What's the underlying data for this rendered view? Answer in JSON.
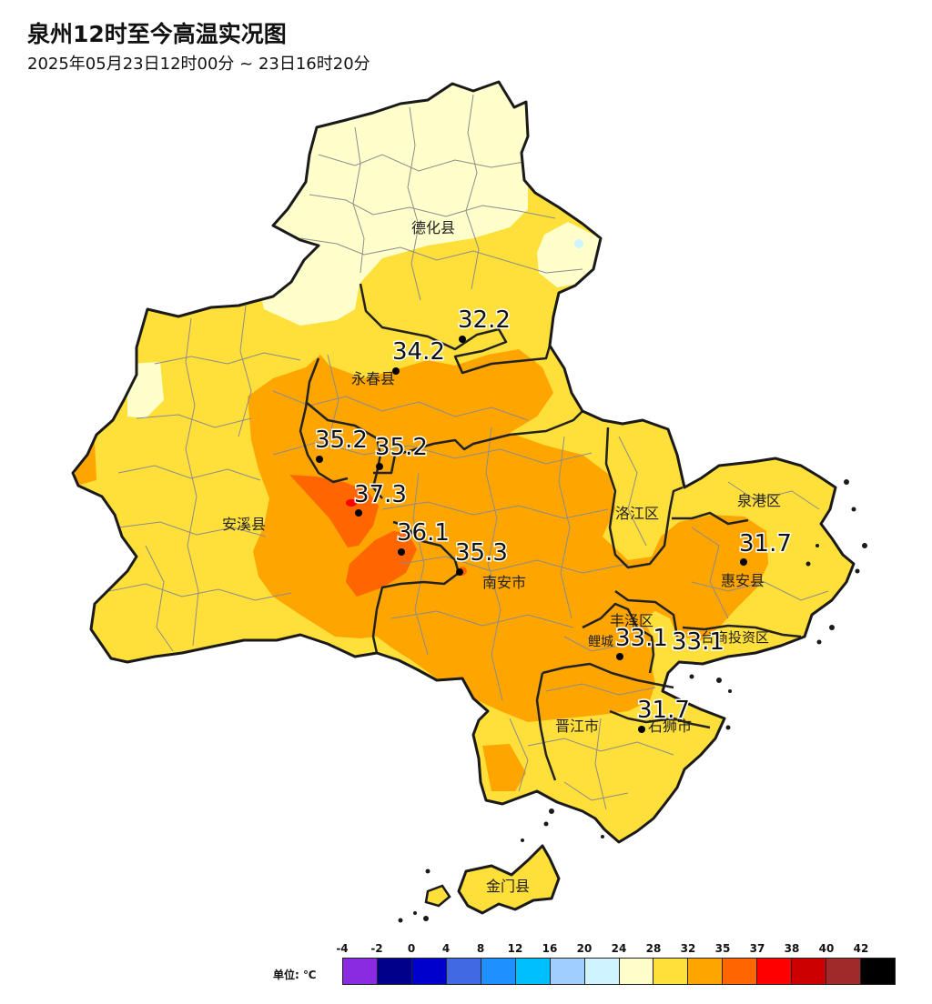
{
  "title": "泉州12时至今高温实况图",
  "subtitle": "2025年05月23日12时00分 ~ 23日16时20分",
  "counties": [
    {
      "name": "德化县"
    },
    {
      "name": "永春县"
    },
    {
      "name": "安溪县"
    },
    {
      "name": "南安市"
    },
    {
      "name": "洛江区"
    },
    {
      "name": "泉港区"
    },
    {
      "name": "惠安县"
    },
    {
      "name": "丰泽区"
    },
    {
      "name": "鲤城"
    },
    {
      "name": "台商投资区"
    },
    {
      "name": "晋江市"
    },
    {
      "name": "石狮市"
    },
    {
      "name": "金门县"
    }
  ],
  "stations": [
    {
      "value": "32.2"
    },
    {
      "value": "34.2"
    },
    {
      "value": "35.2"
    },
    {
      "value": "35.2"
    },
    {
      "value": "37.3"
    },
    {
      "value": "36.1"
    },
    {
      "value": "35.3"
    },
    {
      "value": "31.7"
    },
    {
      "value": "33.1"
    },
    {
      "value": "33.1"
    },
    {
      "value": "31.7"
    }
  ],
  "legend": {
    "unit_label": "单位: ℃",
    "ticks": [
      "-4",
      "-2",
      "0",
      "4",
      "8",
      "12",
      "16",
      "20",
      "24",
      "28",
      "32",
      "35",
      "37",
      "38",
      "40",
      "42"
    ],
    "colors": [
      "#8a2be2",
      "#00008b",
      "#0000cd",
      "#4169e1",
      "#1e90ff",
      "#00bfff",
      "#a0cfff",
      "#d0f4ff",
      "#ffffcc",
      "#ffdf3a",
      "#ffa500",
      "#ff6600",
      "#ff0000",
      "#cc0000",
      "#9e2a2a",
      "#000000"
    ]
  }
}
